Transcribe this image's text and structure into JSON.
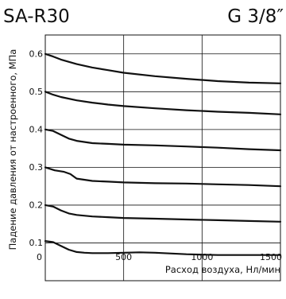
{
  "header": {
    "model": "SA-R30",
    "thread": "G 3/8″"
  },
  "chart_data": {
    "type": "line",
    "xlabel": "Расход воздуха, Нл/мин",
    "ylabel": "Падение давления от настроенного, МПа",
    "xlim": [
      0,
      1500
    ],
    "ylim": [
      0,
      0.65
    ],
    "xticks": [
      0,
      500,
      1000,
      1500
    ],
    "xtick_labels": [
      "0",
      "500",
      "1000",
      "1500"
    ],
    "yticks": [
      0.1,
      0.2,
      0.3,
      0.4,
      0.5,
      0.6
    ],
    "ytick_labels": [
      "0.1",
      "0.2",
      "0.3",
      "0.4",
      "0.5",
      "0.6"
    ],
    "grid": true,
    "series": [
      {
        "x": [
          0,
          50,
          100,
          200,
          300,
          400,
          500,
          700,
          900,
          1100,
          1300,
          1500
        ],
        "y": [
          0.6,
          0.593,
          0.585,
          0.573,
          0.564,
          0.557,
          0.55,
          0.541,
          0.534,
          0.528,
          0.524,
          0.522
        ]
      },
      {
        "x": [
          0,
          50,
          100,
          200,
          300,
          400,
          500,
          700,
          900,
          1100,
          1300,
          1500
        ],
        "y": [
          0.5,
          0.492,
          0.486,
          0.477,
          0.471,
          0.466,
          0.462,
          0.456,
          0.451,
          0.447,
          0.444,
          0.44
        ]
      },
      {
        "x": [
          0,
          50,
          100,
          150,
          200,
          300,
          400,
          500,
          700,
          900,
          1100,
          1300,
          1500
        ],
        "y": [
          0.4,
          0.396,
          0.386,
          0.376,
          0.37,
          0.364,
          0.362,
          0.36,
          0.358,
          0.355,
          0.352,
          0.348,
          0.345
        ]
      },
      {
        "x": [
          0,
          60,
          120,
          160,
          200,
          300,
          400,
          500,
          700,
          900,
          1100,
          1300,
          1500
        ],
        "y": [
          0.3,
          0.292,
          0.288,
          0.282,
          0.27,
          0.264,
          0.262,
          0.26,
          0.258,
          0.257,
          0.255,
          0.253,
          0.25
        ]
      },
      {
        "x": [
          0,
          50,
          100,
          150,
          200,
          300,
          400,
          500,
          700,
          900,
          1100,
          1300,
          1500
        ],
        "y": [
          0.2,
          0.196,
          0.186,
          0.178,
          0.174,
          0.17,
          0.168,
          0.166,
          0.164,
          0.162,
          0.16,
          0.158,
          0.156
        ]
      },
      {
        "x": [
          0,
          50,
          100,
          150,
          200,
          250,
          300,
          400,
          500,
          600,
          700,
          900,
          1100,
          1300,
          1500
        ],
        "y": [
          0.105,
          0.102,
          0.092,
          0.082,
          0.076,
          0.074,
          0.073,
          0.073,
          0.074,
          0.075,
          0.074,
          0.07,
          0.068,
          0.068,
          0.068
        ]
      }
    ],
    "colors": {
      "line": "#111111",
      "grid": "#111111",
      "frame": "#111111"
    }
  }
}
